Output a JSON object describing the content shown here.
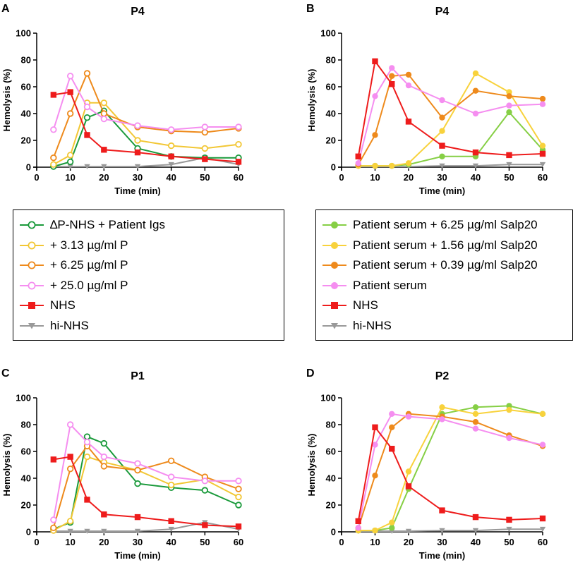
{
  "legends": [
    {
      "entries": [
        {
          "label": "∆P-NHS + Patient Igs",
          "color": "#1a9a3b",
          "marker": "open-circle"
        },
        {
          "label": "+ 3.13 µg/ml P",
          "color": "#f2c735",
          "marker": "open-circle"
        },
        {
          "label": "+ 6.25 µg/ml P",
          "color": "#ee8a1c",
          "marker": "open-circle"
        },
        {
          "label": "+ 25.0 µg/ml P",
          "color": "#f58ef0",
          "marker": "open-circle"
        },
        {
          "label": "NHS",
          "color": "#ee1c1c",
          "marker": "square"
        },
        {
          "label": "hi-NHS",
          "color": "#999999",
          "marker": "triangle-down"
        }
      ]
    },
    {
      "entries": [
        {
          "label": "Patient serum + 6.25 µg/ml Salp20",
          "color": "#86cf45",
          "marker": "filled-circle"
        },
        {
          "label": "Patient serum + 1.56 µg/ml Salp20",
          "color": "#f8d23c",
          "marker": "filled-circle"
        },
        {
          "label": "Patient serum + 0.39 µg/ml Salp20",
          "color": "#ee8a1c",
          "marker": "filled-circle"
        },
        {
          "label": "Patient serum",
          "color": "#f58ef0",
          "marker": "filled-circle"
        },
        {
          "label": "NHS",
          "color": "#ee1c1c",
          "marker": "square"
        },
        {
          "label": "hi-NHS",
          "color": "#999999",
          "marker": "triangle-down"
        }
      ]
    }
  ],
  "chart_data": [
    {
      "panel_label": "A",
      "title": "P4",
      "type": "line",
      "xlabel": "Time (min)",
      "ylabel": "Hemolysis (%)",
      "xlim": [
        0,
        60
      ],
      "ylim": [
        0,
        100
      ],
      "xticks": [
        0,
        10,
        20,
        30,
        40,
        50,
        60
      ],
      "yticks": [
        0,
        20,
        40,
        60,
        80,
        100
      ],
      "series": [
        {
          "name": "∆P-NHS + Patient Igs",
          "color": "#1a9a3b",
          "marker": "open-circle",
          "x": [
            5,
            10,
            15,
            20,
            30,
            40,
            50,
            60
          ],
          "y": [
            0.5,
            4,
            37,
            42,
            14,
            8,
            7,
            7
          ]
        },
        {
          "name": "+ 3.13 µg/ml P",
          "color": "#f2c735",
          "marker": "open-circle",
          "x": [
            5,
            10,
            15,
            20,
            30,
            40,
            50,
            60
          ],
          "y": [
            2,
            9,
            48,
            48,
            20,
            16,
            14,
            17
          ]
        },
        {
          "name": "+ 6.25 µg/ml P",
          "color": "#ee8a1c",
          "marker": "open-circle",
          "x": [
            5,
            10,
            15,
            20,
            30,
            40,
            50,
            60
          ],
          "y": [
            7,
            40,
            70,
            40,
            30,
            27,
            26,
            29
          ]
        },
        {
          "name": "+ 25.0 µg/ml P",
          "color": "#f58ef0",
          "marker": "open-circle",
          "x": [
            5,
            10,
            15,
            20,
            30,
            40,
            50,
            60
          ],
          "y": [
            28,
            68,
            45,
            36,
            31,
            28,
            30,
            30
          ]
        },
        {
          "name": "NHS",
          "color": "#ee1c1c",
          "marker": "square",
          "x": [
            5,
            10,
            15,
            20,
            30,
            40,
            50,
            60
          ],
          "y": [
            54,
            56,
            24,
            13,
            11,
            8,
            6,
            4
          ]
        },
        {
          "name": "hi-NHS",
          "color": "#999999",
          "marker": "triangle-down",
          "x": [
            5,
            10,
            15,
            20,
            30,
            40,
            50,
            60
          ],
          "y": [
            0.5,
            0.5,
            0.5,
            0.5,
            0.5,
            2,
            7,
            2
          ]
        }
      ]
    },
    {
      "panel_label": "B",
      "title": "P4",
      "type": "line",
      "xlabel": "Time (min)",
      "ylabel": "Hemolysis (%)",
      "xlim": [
        0,
        60
      ],
      "ylim": [
        0,
        100
      ],
      "xticks": [
        0,
        10,
        20,
        30,
        40,
        50,
        60
      ],
      "yticks": [
        0,
        20,
        40,
        60,
        80,
        100
      ],
      "series": [
        {
          "name": "Patient serum + 6.25 µg/ml Salp20",
          "color": "#86cf45",
          "marker": "filled-circle",
          "x": [
            5,
            10,
            15,
            20,
            30,
            40,
            50,
            60
          ],
          "y": [
            1,
            1,
            1,
            2,
            8,
            8,
            41,
            13
          ]
        },
        {
          "name": "Patient serum + 1.56 µg/ml Salp20",
          "color": "#f8d23c",
          "marker": "filled-circle",
          "x": [
            5,
            10,
            15,
            20,
            30,
            40,
            50,
            60
          ],
          "y": [
            1,
            1,
            1,
            3,
            27,
            70,
            56,
            16
          ]
        },
        {
          "name": "Patient serum + 0.39 µg/ml Salp20",
          "color": "#ee8a1c",
          "marker": "filled-circle",
          "x": [
            5,
            10,
            15,
            20,
            30,
            40,
            50,
            60
          ],
          "y": [
            2,
            24,
            68,
            69,
            37,
            57,
            53,
            51
          ]
        },
        {
          "name": "Patient serum",
          "color": "#f58ef0",
          "marker": "filled-circle",
          "x": [
            5,
            10,
            15,
            20,
            30,
            40,
            50,
            60
          ],
          "y": [
            3,
            53,
            74,
            61,
            50,
            40,
            46,
            47
          ]
        },
        {
          "name": "NHS",
          "color": "#ee1c1c",
          "marker": "square",
          "x": [
            5,
            10,
            15,
            20,
            30,
            40,
            50,
            60
          ],
          "y": [
            8,
            79,
            62,
            34,
            16,
            11,
            9,
            10
          ]
        },
        {
          "name": "hi-NHS",
          "color": "#999999",
          "marker": "triangle-down",
          "x": [
            5,
            10,
            15,
            20,
            30,
            40,
            50,
            60
          ],
          "y": [
            0.5,
            0.5,
            0.5,
            0.5,
            1,
            1,
            2,
            2
          ]
        }
      ]
    },
    {
      "panel_label": "C",
      "title": "P1",
      "type": "line",
      "xlabel": "Time (min)",
      "ylabel": "Hemolysis (%)",
      "xlim": [
        0,
        60
      ],
      "ylim": [
        0,
        100
      ],
      "xticks": [
        0,
        10,
        20,
        30,
        40,
        50,
        60
      ],
      "yticks": [
        0,
        20,
        40,
        60,
        80,
        100
      ],
      "series": [
        {
          "name": "∆P-NHS + Patient Igs",
          "color": "#1a9a3b",
          "marker": "open-circle",
          "x": [
            5,
            10,
            15,
            20,
            30,
            40,
            50,
            60
          ],
          "y": [
            2,
            7,
            71,
            66,
            36,
            33,
            31,
            20
          ]
        },
        {
          "name": "+ 3.13 µg/ml P",
          "color": "#f2c735",
          "marker": "open-circle",
          "x": [
            5,
            10,
            15,
            20,
            30,
            40,
            50,
            60
          ],
          "y": [
            1,
            8,
            56,
            52,
            46,
            35,
            39,
            26
          ]
        },
        {
          "name": "+ 6.25 µg/ml P",
          "color": "#ee8a1c",
          "marker": "open-circle",
          "x": [
            5,
            10,
            15,
            20,
            30,
            40,
            50,
            60
          ],
          "y": [
            3,
            47,
            64,
            49,
            46,
            53,
            41,
            32
          ]
        },
        {
          "name": "+ 25.0 µg/ml P",
          "color": "#f58ef0",
          "marker": "open-circle",
          "x": [
            5,
            10,
            15,
            20,
            30,
            40,
            50,
            60
          ],
          "y": [
            9,
            80,
            67,
            56,
            51,
            41,
            38,
            38
          ]
        },
        {
          "name": "NHS",
          "color": "#ee1c1c",
          "marker": "square",
          "x": [
            5,
            10,
            15,
            20,
            30,
            40,
            50,
            60
          ],
          "y": [
            54,
            56,
            24,
            13,
            11,
            8,
            5,
            4
          ]
        },
        {
          "name": "hi-NHS",
          "color": "#999999",
          "marker": "triangle-down",
          "x": [
            5,
            10,
            15,
            20,
            30,
            40,
            50,
            60
          ],
          "y": [
            0.5,
            0.5,
            0.5,
            0.5,
            0.5,
            2,
            7,
            2
          ]
        }
      ]
    },
    {
      "panel_label": "D",
      "title": "P2",
      "type": "line",
      "xlabel": "Time (min)",
      "ylabel": "Hemolysis (%)",
      "xlim": [
        0,
        60
      ],
      "ylim": [
        0,
        100
      ],
      "xticks": [
        0,
        10,
        20,
        30,
        40,
        50,
        60
      ],
      "yticks": [
        0,
        20,
        40,
        60,
        80,
        100
      ],
      "series": [
        {
          "name": "Patient serum + 6.25 µg/ml Salp20",
          "color": "#86cf45",
          "marker": "filled-circle",
          "x": [
            5,
            10,
            15,
            20,
            30,
            40,
            50,
            60
          ],
          "y": [
            1,
            1,
            3,
            32,
            88,
            93,
            94,
            88
          ]
        },
        {
          "name": "Patient serum + 1.56 µg/ml Salp20",
          "color": "#f8d23c",
          "marker": "filled-circle",
          "x": [
            5,
            10,
            15,
            20,
            30,
            40,
            50,
            60
          ],
          "y": [
            1,
            1,
            7,
            45,
            93,
            88,
            91,
            88
          ]
        },
        {
          "name": "Patient serum + 0.39 µg/ml Salp20",
          "color": "#ee8a1c",
          "marker": "filled-circle",
          "x": [
            5,
            10,
            15,
            20,
            30,
            40,
            50,
            60
          ],
          "y": [
            3,
            42,
            78,
            88,
            86,
            82,
            72,
            64
          ]
        },
        {
          "name": "Patient serum",
          "color": "#f58ef0",
          "marker": "filled-circle",
          "x": [
            5,
            10,
            15,
            20,
            30,
            40,
            50,
            60
          ],
          "y": [
            3,
            65,
            88,
            86,
            84,
            77,
            70,
            65
          ]
        },
        {
          "name": "NHS",
          "color": "#ee1c1c",
          "marker": "square",
          "x": [
            5,
            10,
            15,
            20,
            30,
            40,
            50,
            60
          ],
          "y": [
            8,
            78,
            62,
            34,
            16,
            11,
            9,
            10
          ]
        },
        {
          "name": "hi-NHS",
          "color": "#999999",
          "marker": "triangle-down",
          "x": [
            5,
            10,
            15,
            20,
            30,
            40,
            50,
            60
          ],
          "y": [
            0.5,
            0.5,
            0.5,
            0.5,
            1,
            1,
            2,
            2
          ]
        }
      ]
    }
  ]
}
